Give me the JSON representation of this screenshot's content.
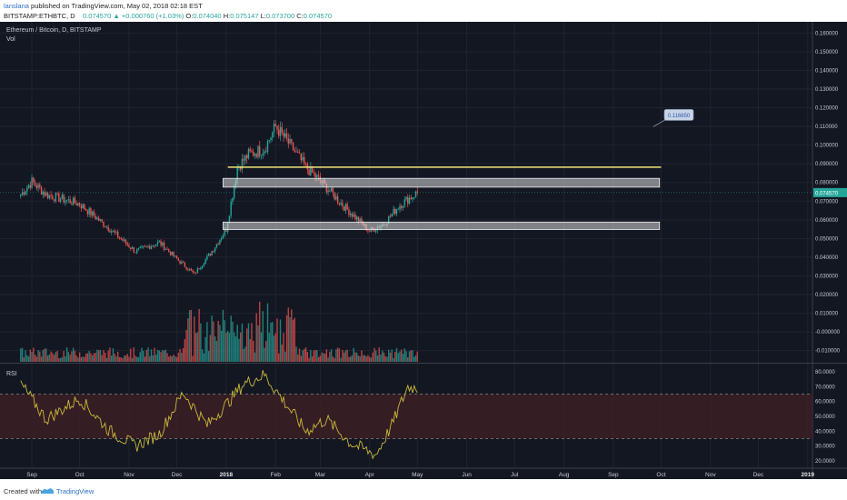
{
  "header": {
    "author": "lanslana",
    "published": " published on TradingView.com, May 02, 2018 02:18 EST",
    "symbol": "BITSTAMP:ETHBTC, D",
    "price": "0.074570",
    "change": "+0.000760 (+1.03%)",
    "o_label": "O:",
    "o": "0.074040",
    "h_label": "H:",
    "h": "0.075147",
    "l_label": "L:",
    "l": "0.073700",
    "c_label": "C:",
    "c": "0.074570"
  },
  "chart_panel": {
    "title": "Ethereum / Bitcoin, D, BITSTAMP",
    "vol_label": "Vol",
    "rsi_label": "RSI",
    "current_price_tag": "0.074570",
    "annotation_label": "0.116650"
  },
  "footer": {
    "created_with": "Created with",
    "brand": "TradingView"
  },
  "colors": {
    "background": "#131722",
    "up": "#26a69a",
    "down": "#ef5350",
    "rsi_line": "#c9b83a",
    "resistance": "#f5e97a",
    "zone_fill": "#d8d8d8",
    "rsi_band": "#3d1f24"
  },
  "chart_data": [
    {
      "type": "candlestick",
      "title": "Ethereum / Bitcoin, D, BITSTAMP",
      "x_ticks": [
        "Sep",
        "Oct",
        "Nov",
        "Dec",
        "2018",
        "Feb",
        "Mar",
        "Apr",
        "May",
        "Jun",
        "Jul",
        "Aug",
        "Sep",
        "Oct",
        "Nov",
        "Dec",
        "2019"
      ],
      "y_ticks": [
        "0.160000",
        "0.150000",
        "0.140000",
        "0.130000",
        "0.120000",
        "0.110000",
        "0.100000",
        "0.090000",
        "0.080000",
        "0.070000",
        "0.060000",
        "0.050000",
        "0.040000",
        "0.030000",
        "0.020000",
        "0.010000",
        "-0.000000",
        "-0.010000"
      ],
      "ylim": [
        -0.016,
        0.166
      ],
      "close_series_by_month": {
        "x": [
          "2017-08-25",
          "2017-09-01",
          "2017-09-10",
          "2017-10-01",
          "2017-10-20",
          "2017-11-05",
          "2017-11-20",
          "2017-12-01",
          "2017-12-12",
          "2017-12-22",
          "2018-01-01",
          "2018-01-08",
          "2018-01-15",
          "2018-01-25",
          "2018-02-01",
          "2018-02-10",
          "2018-02-20",
          "2018-03-01",
          "2018-03-15",
          "2018-04-01",
          "2018-04-10",
          "2018-04-20",
          "2018-05-01"
        ],
        "close": [
          0.0735,
          0.0805,
          0.0735,
          0.0685,
          0.055,
          0.043,
          0.048,
          0.039,
          0.031,
          0.042,
          0.055,
          0.088,
          0.095,
          0.098,
          0.11,
          0.1,
          0.088,
          0.081,
          0.068,
          0.054,
          0.058,
          0.068,
          0.0746
        ]
      },
      "current_price": 0.07457,
      "horizontal_line": 0.0882,
      "zones": [
        {
          "low": 0.0775,
          "high": 0.0822
        },
        {
          "low": 0.0548,
          "high": 0.0588
        }
      ],
      "annotation": 0.11665
    },
    {
      "type": "line",
      "name": "RSI",
      "y_ticks": [
        "80.0000",
        "70.0000",
        "60.0000",
        "50.0000",
        "40.0000",
        "30.0000",
        "20.0000"
      ],
      "ylim": [
        15,
        85
      ],
      "band": [
        35,
        65
      ],
      "x": [
        "2017-08-25",
        "2017-09-10",
        "2017-10-01",
        "2017-10-20",
        "2017-11-05",
        "2017-11-20",
        "2017-12-05",
        "2017-12-20",
        "2018-01-01",
        "2018-01-12",
        "2018-01-25",
        "2018-02-05",
        "2018-02-20",
        "2018-03-05",
        "2018-03-20",
        "2018-04-05",
        "2018-04-15",
        "2018-04-25",
        "2018-05-01"
      ],
      "values": [
        72,
        48,
        62,
        40,
        30,
        38,
        66,
        44,
        58,
        72,
        78,
        62,
        40,
        48,
        32,
        24,
        44,
        70,
        69
      ]
    }
  ]
}
